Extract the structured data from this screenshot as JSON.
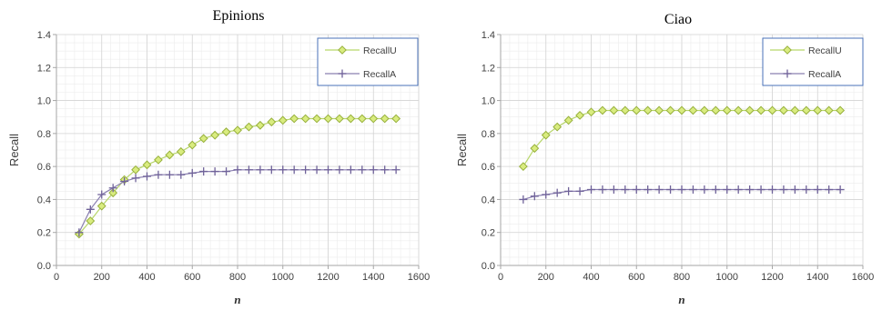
{
  "colors": {
    "recallU_line": "#b7d66a",
    "recallU_marker_fill": "#d9ec7f",
    "recallU_marker_stroke": "#97b03c",
    "recallA_line": "#8a7fb0",
    "recallA_marker": "#6f6299",
    "grid_major": "#d4d4d4",
    "grid_minor": "#ececec",
    "axis": "#a6a6a6",
    "legend_border": "#4a72b8"
  },
  "chart_data": [
    {
      "type": "line",
      "title": "Epinions",
      "xlabel": "n",
      "ylabel": "Recall",
      "xlim": [
        0,
        1600
      ],
      "ylim": [
        0,
        1.4
      ],
      "x_ticks": [
        0,
        200,
        400,
        600,
        800,
        1000,
        1200,
        1400,
        1600
      ],
      "y_ticks": [
        "0.0",
        "0.2",
        "0.4",
        "0.6",
        "0.8",
        "1.0",
        "1.2",
        "1.4"
      ],
      "grid": true,
      "legend_position": "top-right",
      "x": [
        100,
        150,
        200,
        250,
        300,
        350,
        400,
        450,
        500,
        550,
        600,
        650,
        700,
        750,
        800,
        850,
        900,
        950,
        1000,
        1050,
        1100,
        1150,
        1200,
        1250,
        1300,
        1350,
        1400,
        1450,
        1500
      ],
      "series": [
        {
          "name": "RecallU",
          "marker": "diamond",
          "values": [
            0.19,
            0.27,
            0.36,
            0.44,
            0.52,
            0.58,
            0.61,
            0.64,
            0.67,
            0.69,
            0.73,
            0.77,
            0.79,
            0.81,
            0.82,
            0.84,
            0.85,
            0.87,
            0.88,
            0.89,
            0.89,
            0.89,
            0.89,
            0.89,
            0.89,
            0.89,
            0.89,
            0.89,
            0.89
          ]
        },
        {
          "name": "RecallA",
          "marker": "plus",
          "values": [
            0.2,
            0.34,
            0.43,
            0.47,
            0.51,
            0.53,
            0.54,
            0.55,
            0.55,
            0.55,
            0.56,
            0.57,
            0.57,
            0.57,
            0.58,
            0.58,
            0.58,
            0.58,
            0.58,
            0.58,
            0.58,
            0.58,
            0.58,
            0.58,
            0.58,
            0.58,
            0.58,
            0.58,
            0.58
          ]
        }
      ]
    },
    {
      "type": "line",
      "title": "Ciao",
      "xlabel": "n",
      "ylabel": "Recall",
      "xlim": [
        0,
        1600
      ],
      "ylim": [
        0,
        1.4
      ],
      "x_ticks": [
        0,
        200,
        400,
        600,
        800,
        1000,
        1200,
        1400,
        1600
      ],
      "y_ticks": [
        "0.0",
        "0.2",
        "0.4",
        "0.6",
        "0.8",
        "1.0",
        "1.2",
        "1.4"
      ],
      "grid": true,
      "legend_position": "top-right",
      "x": [
        100,
        150,
        200,
        250,
        300,
        350,
        400,
        450,
        500,
        550,
        600,
        650,
        700,
        750,
        800,
        850,
        900,
        950,
        1000,
        1050,
        1100,
        1150,
        1200,
        1250,
        1300,
        1350,
        1400,
        1450,
        1500
      ],
      "series": [
        {
          "name": "RecallU",
          "marker": "diamond",
          "values": [
            0.6,
            0.71,
            0.79,
            0.84,
            0.88,
            0.91,
            0.93,
            0.94,
            0.94,
            0.94,
            0.94,
            0.94,
            0.94,
            0.94,
            0.94,
            0.94,
            0.94,
            0.94,
            0.94,
            0.94,
            0.94,
            0.94,
            0.94,
            0.94,
            0.94,
            0.94,
            0.94,
            0.94,
            0.94
          ]
        },
        {
          "name": "RecallA",
          "marker": "plus",
          "values": [
            0.4,
            0.42,
            0.43,
            0.44,
            0.45,
            0.45,
            0.46,
            0.46,
            0.46,
            0.46,
            0.46,
            0.46,
            0.46,
            0.46,
            0.46,
            0.46,
            0.46,
            0.46,
            0.46,
            0.46,
            0.46,
            0.46,
            0.46,
            0.46,
            0.46,
            0.46,
            0.46,
            0.46,
            0.46
          ]
        }
      ]
    }
  ]
}
